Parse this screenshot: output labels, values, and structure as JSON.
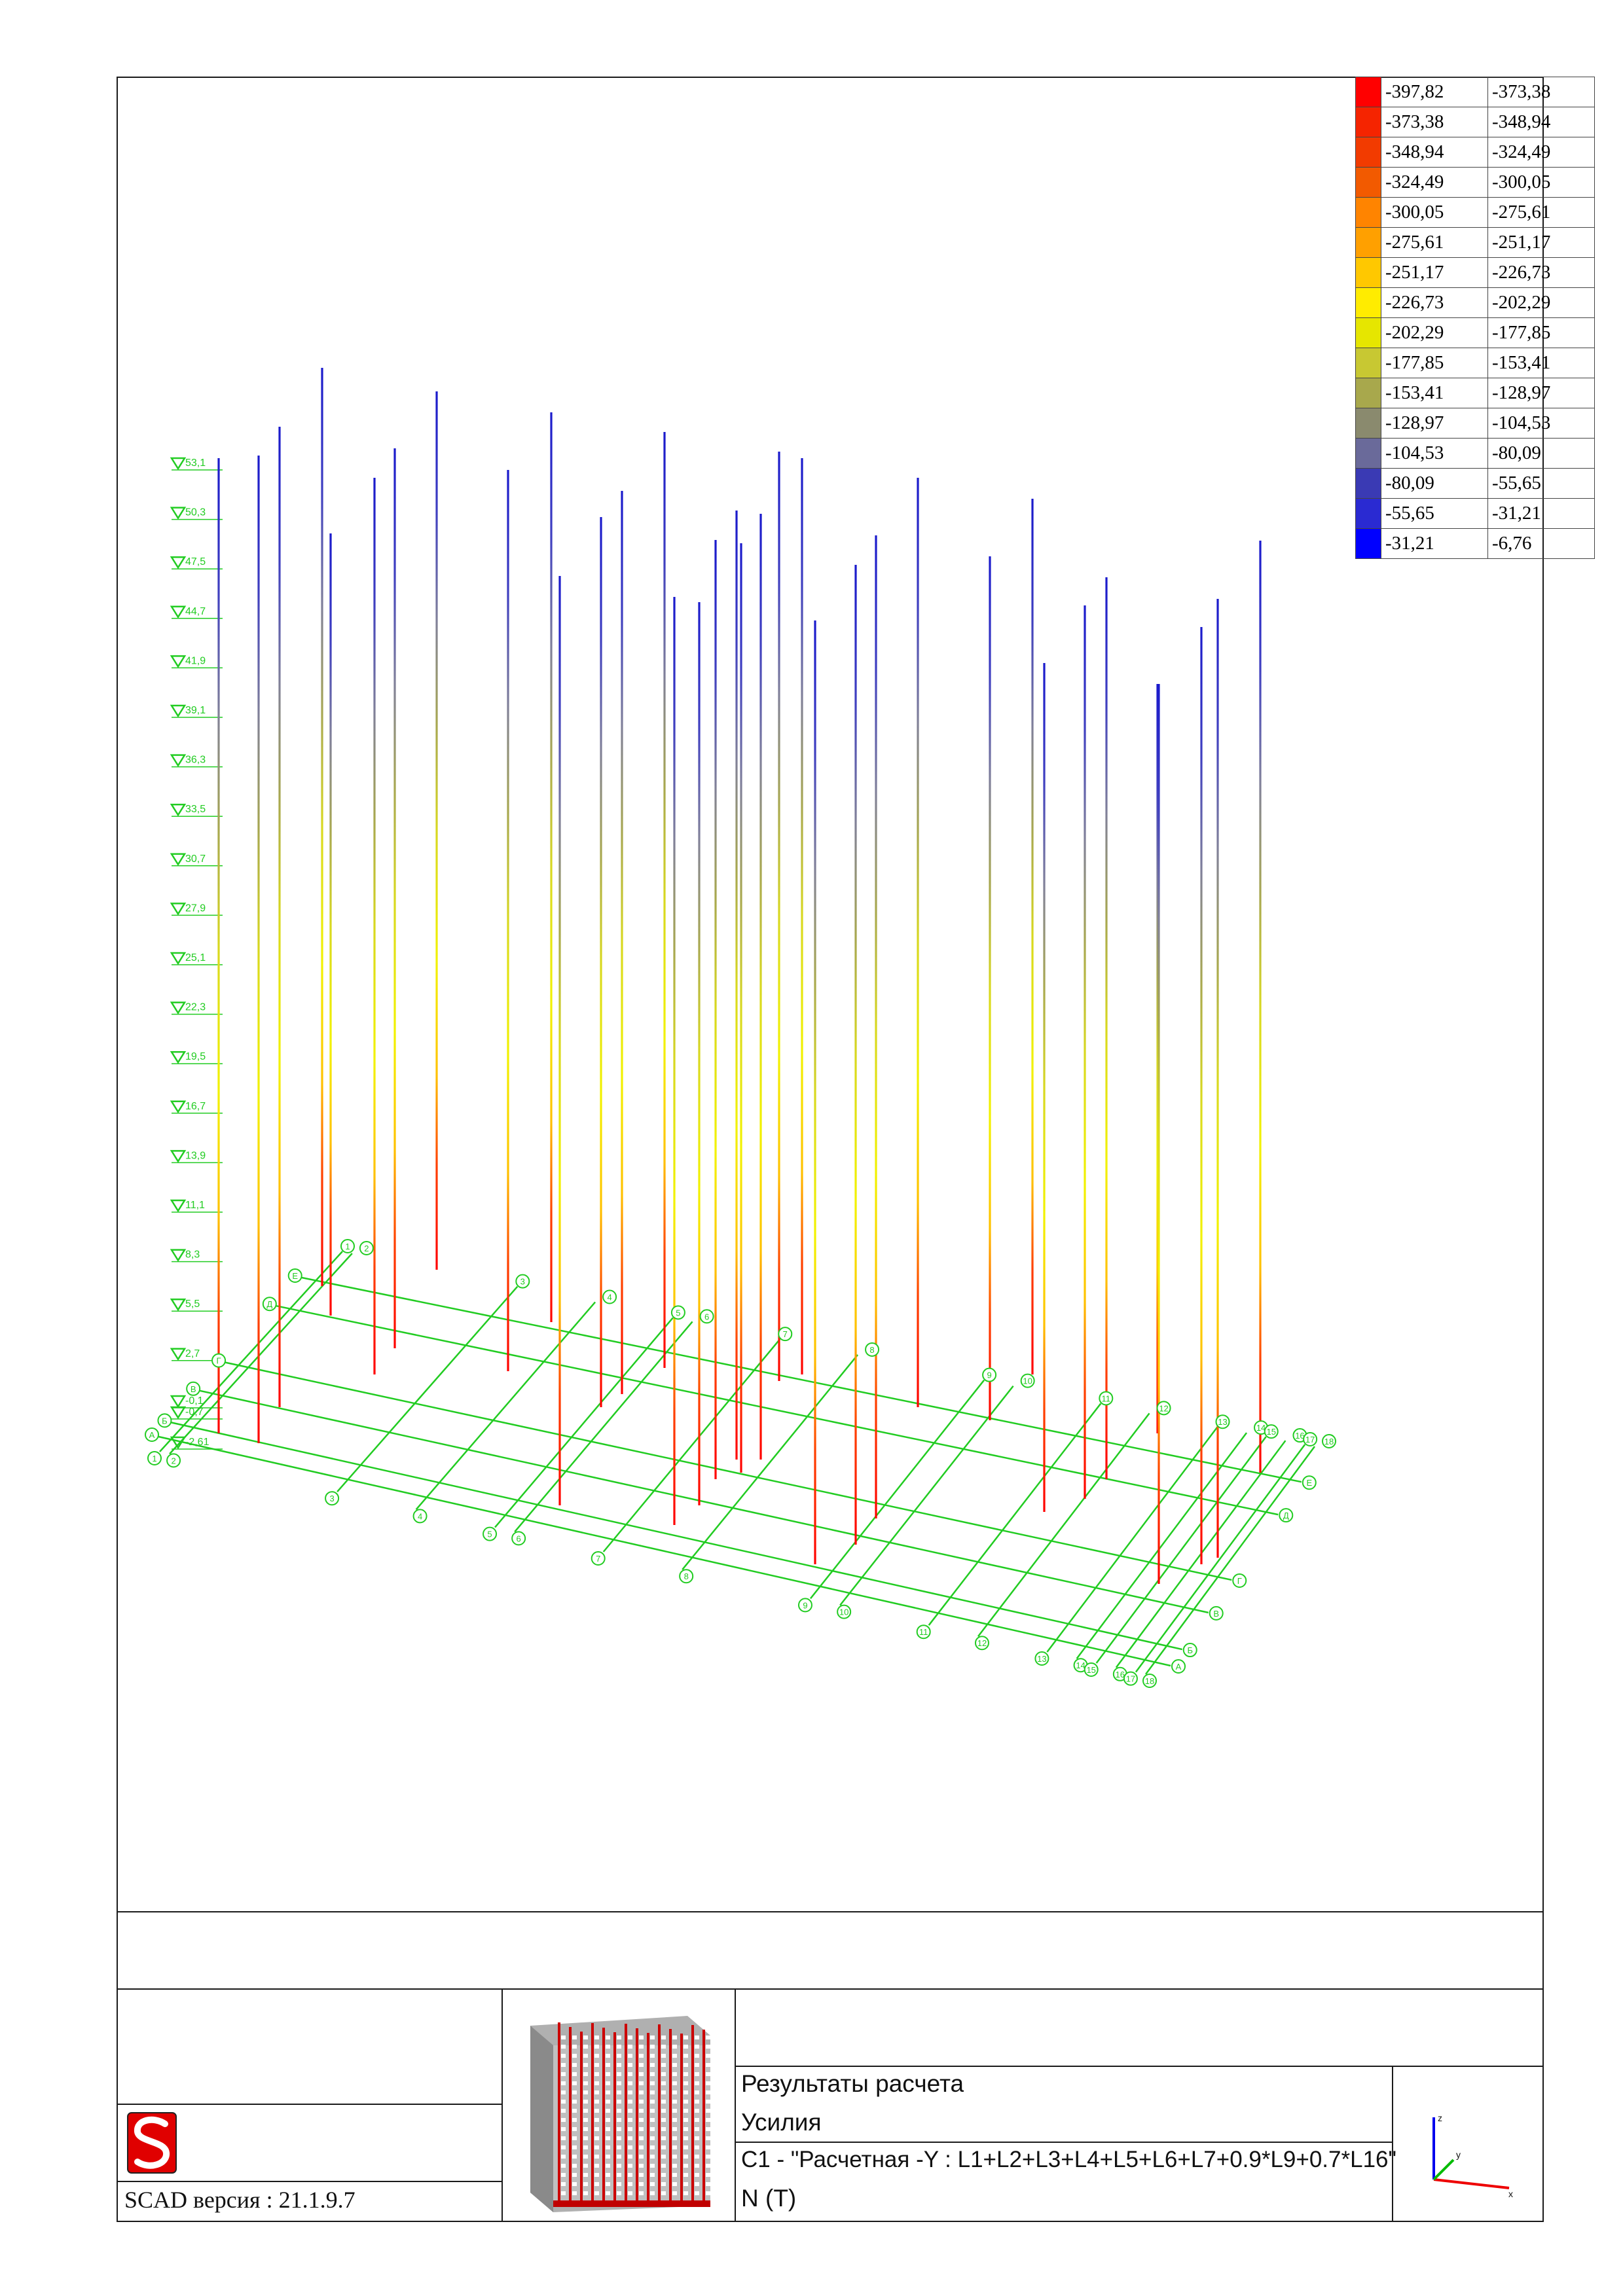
{
  "legend": [
    {
      "color": "#ff0000",
      "from": "-397,82",
      "to": "-373,38"
    },
    {
      "color": "#f52400",
      "from": "-373,38",
      "to": "-348,94"
    },
    {
      "color": "#f23b00",
      "from": "-348,94",
      "to": "-324,49"
    },
    {
      "color": "#f25a00",
      "from": "-324,49",
      "to": "-300,05"
    },
    {
      "color": "#ff8400",
      "from": "-300,05",
      "to": "-275,61"
    },
    {
      "color": "#ffa000",
      "from": "-275,61",
      "to": "-251,17"
    },
    {
      "color": "#ffc800",
      "from": "-251,17",
      "to": "-226,73"
    },
    {
      "color": "#ffec00",
      "from": "-226,73",
      "to": "-202,29"
    },
    {
      "color": "#e6e600",
      "from": "-202,29",
      "to": "-177,85"
    },
    {
      "color": "#c8c832",
      "from": "-177,85",
      "to": "-153,41"
    },
    {
      "color": "#a8a84c",
      "from": "-153,41",
      "to": "-128,97"
    },
    {
      "color": "#8a8a6e",
      "from": "-128,97",
      "to": "-104,53"
    },
    {
      "color": "#6a6a9a",
      "from": "-104,53",
      "to": "-80,09"
    },
    {
      "color": "#3a3ab4",
      "from": "-80,09",
      "to": "-55,65"
    },
    {
      "color": "#2a2ad2",
      "from": "-55,65",
      "to": "-31,21"
    },
    {
      "color": "#0000ff",
      "from": "-31,21",
      "to": "-6,76"
    }
  ],
  "levels": [
    "53,1",
    "50,3",
    "47,5",
    "44,7",
    "41,9",
    "39,1",
    "36,3",
    "33,5",
    "30,7",
    "27,9",
    "25,1",
    "22,3",
    "19,5",
    "16,7",
    "13,9",
    "11,1",
    "8,3",
    "5,5",
    "2,7",
    "-0,1",
    "-0,7",
    "-2,61"
  ],
  "grid": {
    "rows": {
      "left": [
        "А",
        "Б",
        "В",
        "Г",
        "Д",
        "Е"
      ],
      "right": [
        "А",
        "Б",
        "В",
        "Г",
        "Д",
        "Е"
      ]
    },
    "cols": {
      "front": [
        "1",
        "2",
        "3",
        "4",
        "5",
        "6",
        "7",
        "8",
        "9",
        "10",
        "11",
        "12",
        "13",
        "14",
        "15",
        "16",
        "17",
        "18"
      ],
      "back": [
        "1",
        "2",
        "3",
        "4",
        "5",
        "6",
        "7",
        "8",
        "9",
        "10",
        "11",
        "12",
        "13",
        "14",
        "15",
        "16",
        "17",
        "18"
      ]
    }
  },
  "stamp": {
    "title1": "Результаты расчета",
    "title2": "Усилия",
    "combination": "С1 - \"Расчетная -Y : L1+L2+L3+L4+L5+L6+L7+0.9*L9+0.7*L16\"",
    "factor": "N (Т)",
    "software": "SCAD версия : 21.1.9.7"
  },
  "axes": {
    "x": "x",
    "y": "y",
    "z": "z"
  },
  "colors": {
    "grid": "#22cc22",
    "frame": "#1a1a1a"
  }
}
